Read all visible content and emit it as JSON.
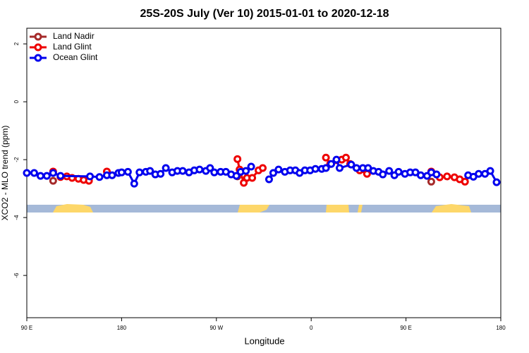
{
  "chart_data": {
    "type": "line",
    "title": "25S-20S July (Ver 10)   2015-01-01 to 2020-12-18",
    "xlabel": "Longitude",
    "ylabel": "XCO2 - MLO trend (ppm)",
    "xlim": [
      90,
      540
    ],
    "ylim": [
      -7.46,
      2.54
    ],
    "xticks": [
      {
        "value": 90,
        "label": "90 E"
      },
      180,
      {
        "value": 270,
        "label": "90 W"
      },
      {
        "value": 360,
        "label": "0"
      },
      {
        "value": 450,
        "label": "90 E"
      },
      {
        "value": 540,
        "label": "180"
      }
    ],
    "yticks": [
      2,
      0,
      -2,
      -4,
      -6
    ],
    "legend": "top-left",
    "series": [
      {
        "name": "Land Nadir",
        "color": "#a52a2a",
        "x": [
          115,
          200,
          290,
          400,
          474
        ],
        "values": [
          -2.73,
          null,
          -2.58,
          null,
          -2.76
        ]
      },
      {
        "name": "Land Glint",
        "color": "#ee0000",
        "x": [
          115,
          122,
          128,
          133,
          139,
          144,
          149,
          155,
          166,
          230,
          290,
          292,
          296,
          299,
          304,
          310,
          314,
          340,
          374,
          378,
          384,
          389,
          393,
          397,
          406,
          413,
          440,
          474,
          482,
          489,
          496,
          501,
          506
        ],
        "values": [
          -2.41,
          -2.6,
          -2.58,
          -2.63,
          -2.66,
          -2.7,
          -2.73,
          null,
          -2.41,
          null,
          -1.98,
          -2.34,
          -2.8,
          -2.63,
          -2.63,
          -2.37,
          -2.29,
          null,
          -1.93,
          -2.15,
          -2.02,
          -2.0,
          -1.93,
          -2.15,
          -2.37,
          -2.49,
          null,
          -2.41,
          -2.61,
          -2.58,
          -2.61,
          -2.68,
          -2.76
        ]
      },
      {
        "name": "Ocean Glint",
        "color": "#0000ee",
        "x": [
          90,
          97,
          103,
          109,
          115,
          122,
          150,
          159,
          166,
          171,
          177,
          180,
          186,
          192,
          197,
          203,
          207,
          212,
          217,
          222,
          228,
          233,
          238,
          244,
          249,
          254,
          260,
          264,
          268,
          274,
          279,
          284,
          289,
          293,
          298,
          303,
          310,
          320,
          324,
          329,
          335,
          340,
          345,
          349,
          354,
          359,
          364,
          370,
          374,
          379,
          384,
          387,
          398,
          403,
          409,
          414,
          419,
          424,
          428,
          434,
          439,
          443,
          449,
          454,
          459,
          464,
          470,
          474,
          479,
          495,
          509,
          514,
          519,
          525,
          530,
          536
        ],
        "values": [
          -2.46,
          -2.46,
          -2.56,
          -2.56,
          -2.46,
          -2.56,
          -2.58,
          -2.6,
          -2.54,
          -2.54,
          -2.46,
          -2.44,
          -2.42,
          -2.83,
          -2.44,
          -2.42,
          -2.39,
          -2.51,
          -2.49,
          -2.29,
          -2.44,
          -2.39,
          -2.39,
          -2.44,
          -2.37,
          -2.34,
          -2.39,
          -2.29,
          -2.44,
          -2.42,
          -2.42,
          -2.51,
          -2.56,
          -2.42,
          -2.39,
          -2.24,
          null,
          -2.68,
          -2.46,
          -2.34,
          -2.42,
          -2.37,
          -2.37,
          -2.46,
          -2.37,
          -2.37,
          -2.32,
          -2.32,
          -2.29,
          -2.15,
          -2.0,
          -2.29,
          -2.17,
          -2.29,
          -2.29,
          -2.29,
          -2.39,
          -2.42,
          -2.51,
          -2.39,
          -2.54,
          -2.42,
          -2.49,
          -2.44,
          -2.44,
          -2.54,
          -2.56,
          -2.44,
          -2.51,
          null,
          -2.54,
          -2.59,
          -2.49,
          -2.49,
          -2.39,
          -2.78
        ]
      }
    ]
  }
}
